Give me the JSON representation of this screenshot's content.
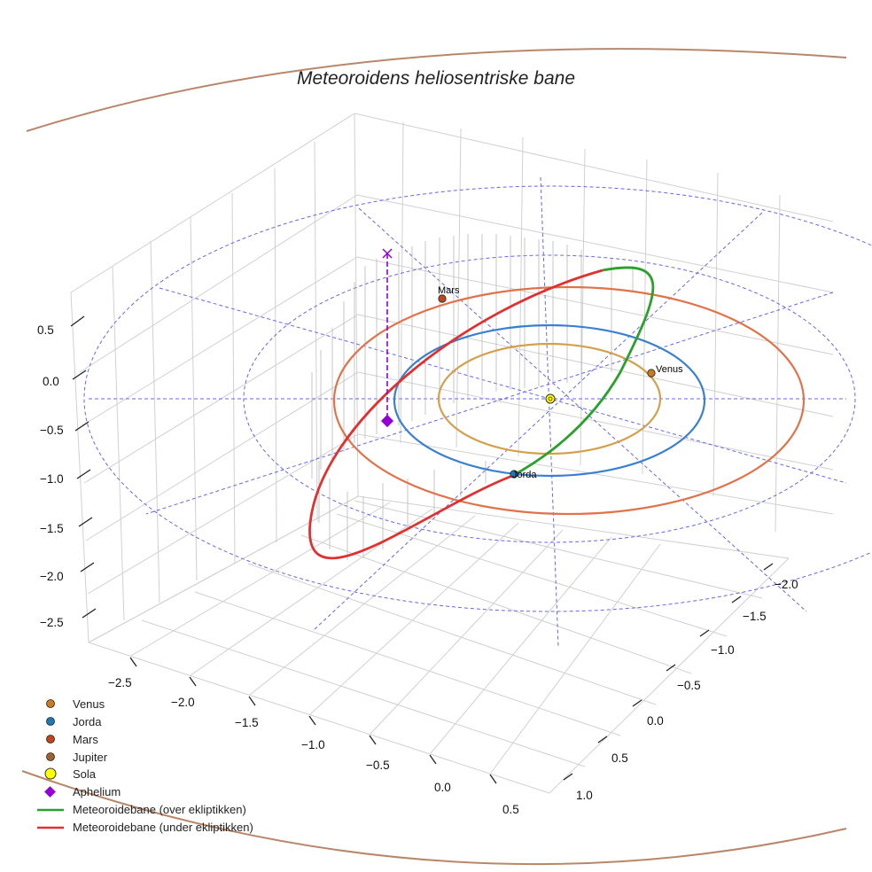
{
  "chart_data": {
    "type": "3d-line",
    "title": "Meteoroidens heliosentriske bane",
    "colors": {
      "venus": "#cc7a1e",
      "jorda": "#1f77b4",
      "mars": "#c0451c",
      "jupiter": "#a0622d",
      "sola": "#ffff00",
      "aphelium": "#9400d3",
      "over": "#2ca02c",
      "under": "#e03030",
      "venus_orbit": "#d4a04c",
      "jorda_orbit": "#3a7fd0",
      "mars_orbit": "#e0734a",
      "jupiter_orbit": "#b8876a",
      "grid_ref": "#6666ee"
    },
    "axes": {
      "x_ticks": [
        "−2.5",
        "−2.0",
        "−1.5",
        "−1.0",
        "−0.5",
        "0.0",
        "0.5"
      ],
      "y_ticks": [
        "−2.0",
        "−1.5",
        "−1.0",
        "−0.5",
        "0.0",
        "0.5",
        "1.0"
      ],
      "z_ticks": [
        "0.5",
        "0.0",
        "−0.5",
        "−1.0",
        "−1.5",
        "−2.0",
        "−2.5"
      ]
    },
    "planets": [
      {
        "name": "Venus",
        "orbit_radius_au": 0.72
      },
      {
        "name": "Jorda",
        "orbit_radius_au": 1.0
      },
      {
        "name": "Mars",
        "orbit_radius_au": 1.52
      },
      {
        "name": "Jupiter",
        "orbit_radius_au": 5.2
      }
    ],
    "aphelion_label": "Aphelium",
    "legend": [
      {
        "label": "Venus",
        "key": "venus",
        "marker": "circle"
      },
      {
        "label": "Jorda",
        "key": "jorda",
        "marker": "circle"
      },
      {
        "label": "Mars",
        "key": "mars",
        "marker": "circle"
      },
      {
        "label": "Jupiter",
        "key": "jupiter",
        "marker": "circle"
      },
      {
        "label": "Sola",
        "key": "sola",
        "marker": "sun"
      },
      {
        "label": "Aphelium",
        "key": "aphelium",
        "marker": "diamond"
      },
      {
        "label": "Meteoroidebane (over ekliptikken)",
        "key": "over",
        "marker": "line"
      },
      {
        "label": "Meteoroidebane (under ekliptikken)",
        "key": "under",
        "marker": "line"
      }
    ],
    "grid": true
  }
}
